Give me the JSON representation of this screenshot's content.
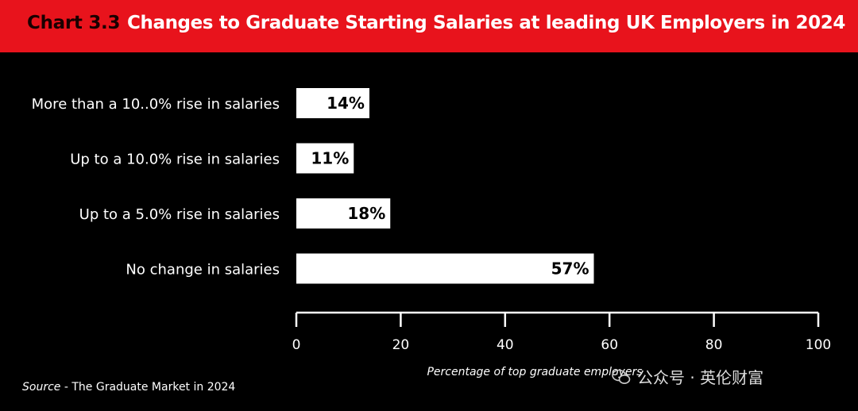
{
  "header": {
    "chart_number": "Chart 3.3",
    "title": "Changes to Graduate Starting Salaries at leading UK Employers in 2024",
    "background_color": "#e8131c"
  },
  "chart_data": {
    "type": "bar",
    "orientation": "horizontal",
    "categories": [
      "More than a 10..0% rise in salaries",
      "Up to a 10.0% rise in salaries",
      "Up to a 5.0% rise in salaries",
      "No change in salaries"
    ],
    "values": [
      14,
      11,
      18,
      57
    ],
    "value_labels": [
      "14%",
      "11%",
      "18%",
      "57%"
    ],
    "xlabel": "Percentage of top graduate employers",
    "xlim": [
      0,
      100
    ],
    "xticks": [
      0,
      20,
      40,
      60,
      80,
      100
    ],
    "grid": false,
    "bar_color": "#ffffff",
    "background_color": "#000000"
  },
  "footer": {
    "source_label": "Source",
    "source_text": " - The Graduate Market in 2024"
  },
  "watermark": {
    "text": "公众号 · 英伦财富",
    "icon": "wechat-icon"
  }
}
